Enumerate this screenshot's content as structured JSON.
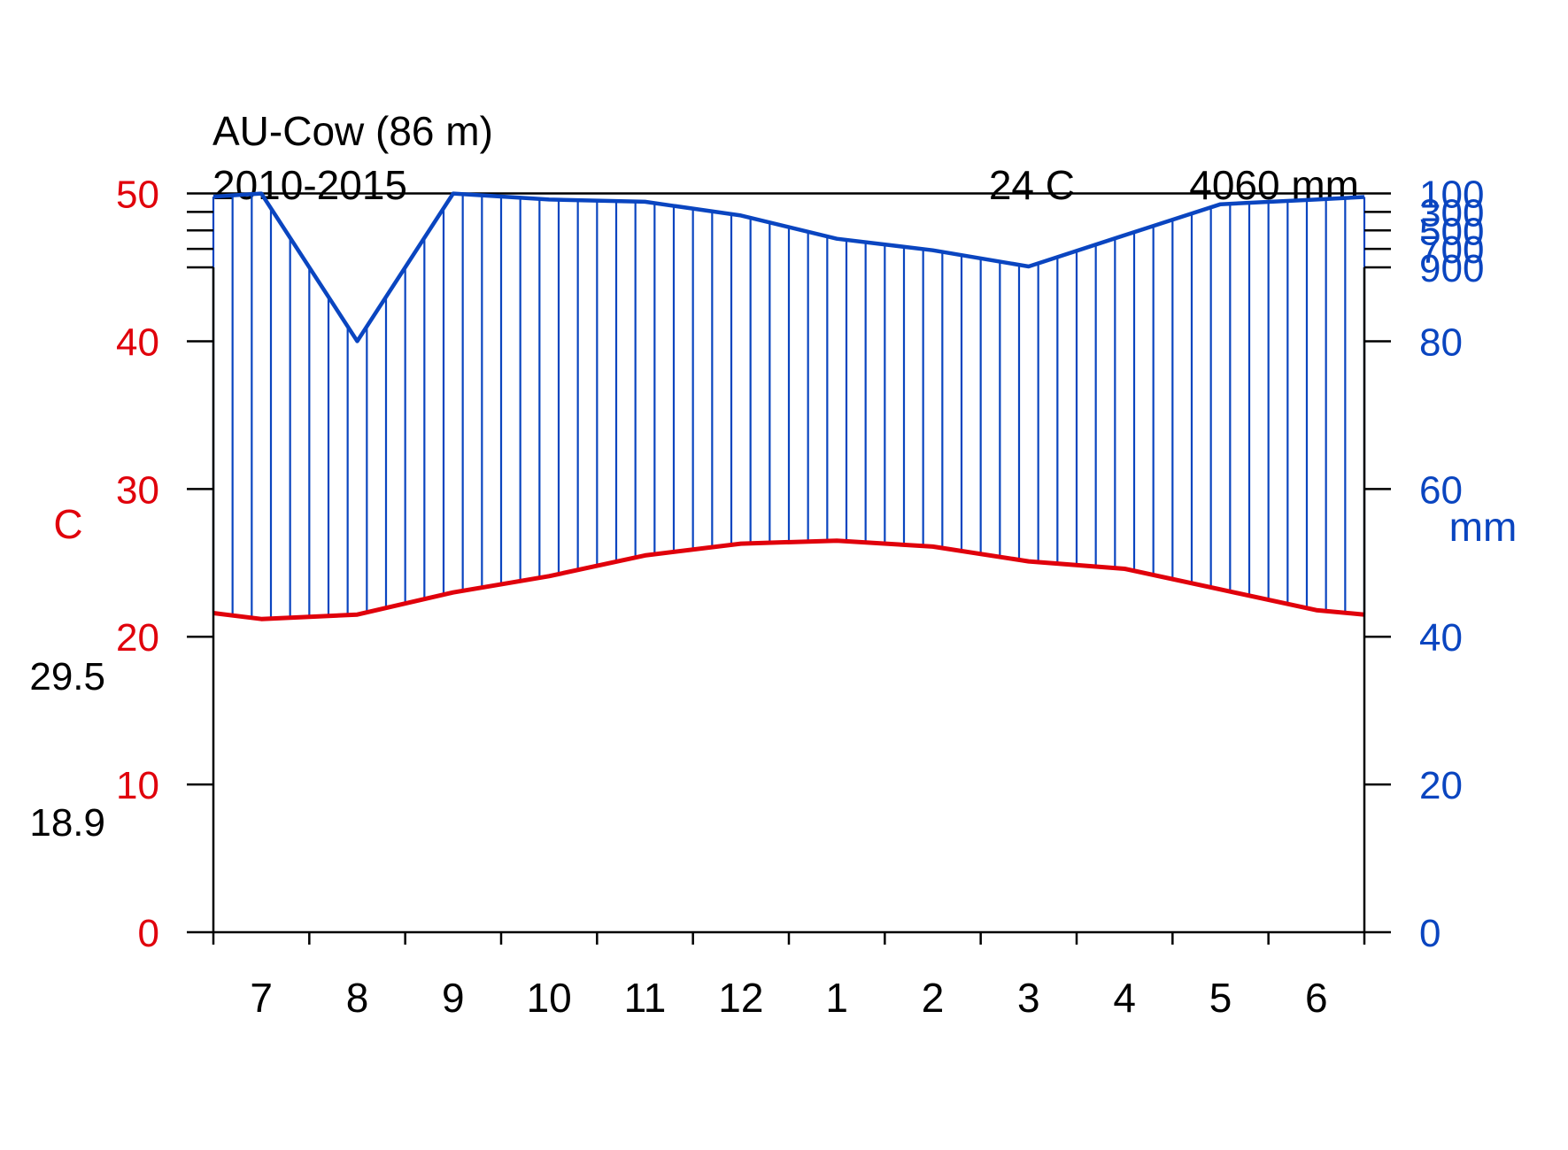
{
  "chart_data": {
    "type": "line",
    "title": "AU-Cow (86 m)",
    "subtitle": "2010-2015",
    "mean_temp_label": "24 C",
    "total_precip_label": "4060 mm",
    "temp_axis_label": "C",
    "precip_axis_label": "mm",
    "temp_ticks": [
      "0",
      "10",
      "20",
      "30",
      "40",
      "50"
    ],
    "precip_ticks": [
      "0",
      "20",
      "40",
      "60",
      "80",
      "100",
      "300",
      "500",
      "700",
      "900"
    ],
    "side_labels": {
      "upper": "29.5",
      "lower": "18.9"
    },
    "categories": [
      "7",
      "8",
      "9",
      "10",
      "11",
      "12",
      "1",
      "2",
      "3",
      "4",
      "5",
      "6"
    ],
    "temp_ylim": [
      0,
      50
    ],
    "precip_ylim": [
      0,
      900
    ],
    "precip_scale_break": 100,
    "series": [
      {
        "name": "temperature",
        "unit": "C",
        "values": [
          21.2,
          21.5,
          23.0,
          24.1,
          25.5,
          26.3,
          26.5,
          26.1,
          25.1,
          24.6,
          23.2,
          21.8
        ]
      },
      {
        "name": "precipitation",
        "unit": "mm",
        "values": [
          100,
          80,
          100,
          166,
          190,
          338,
          590,
          715,
          890,
          552,
          216,
          166
        ]
      }
    ],
    "edge_values": {
      "temp_start": 21.6,
      "temp_end": 21.5,
      "precip_start": 134,
      "precip_end": 138
    },
    "colors": {
      "temperature": "#e0000b",
      "precipitation": "#0a45c0",
      "precip_fill": "#0a43bd",
      "axis": "#000000"
    }
  }
}
